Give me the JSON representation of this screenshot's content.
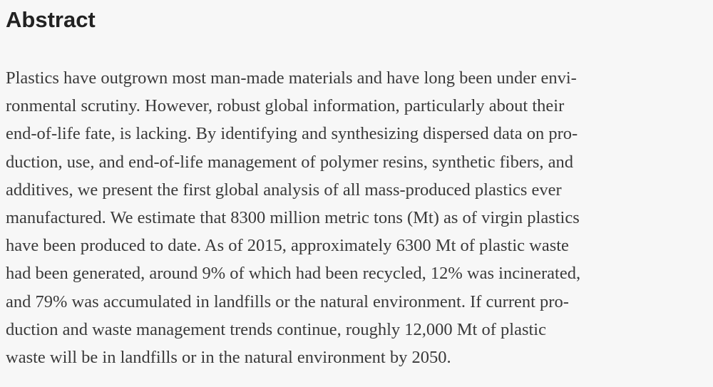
{
  "abstract": {
    "heading": "Abstract",
    "lines": [
      "Plastics have outgrown most man-made materials and have long been under envi-",
      "ronmental scrutiny. However, robust global information, particularly about their",
      "end-of-life fate, is lacking. By identifying and synthesizing dispersed data on pro-",
      "duction, use, and end-of-life management of polymer resins, synthetic fibers, and",
      "additives, we present the first global analysis of all mass-produced plastics ever",
      "manufactured. We estimate that 8300 million metric tons (Mt) as of virgin plastics",
      "have been produced to date. As of 2015, approximately 6300 Mt of plastic waste",
      "had been generated, around 9% of which had been recycled, 12% was incinerated,",
      "and 79% was accumulated in landfills or the natural environment. If current pro-",
      "duction and waste management trends continue, roughly 12,000 Mt of plastic",
      "waste will be in landfills or in the natural environment by 2050."
    ]
  }
}
